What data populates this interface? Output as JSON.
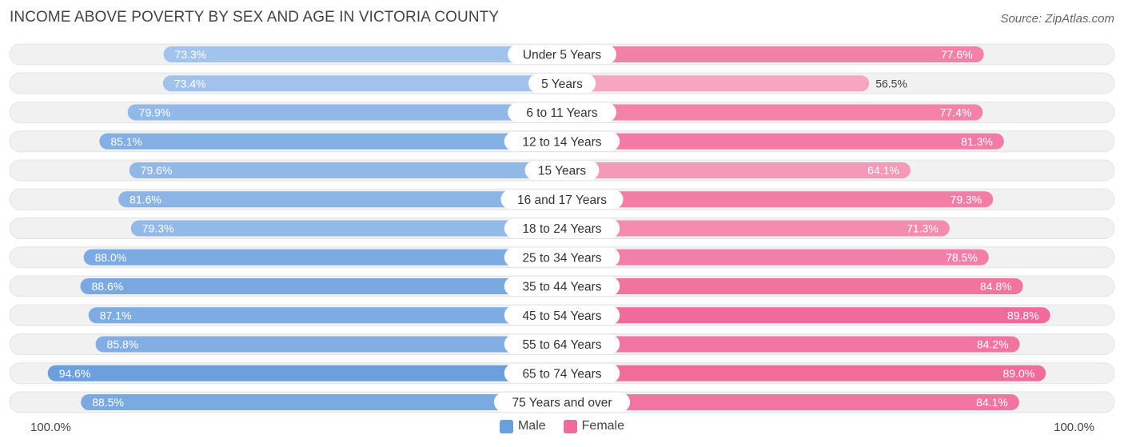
{
  "title": "INCOME ABOVE POVERTY BY SEX AND AGE IN VICTORIA COUNTY",
  "source": "Source: ZipAtlas.com",
  "axis": {
    "left_label": "100.0%",
    "right_label": "100.0%"
  },
  "legend": {
    "male": "Male",
    "female": "Female"
  },
  "colors": {
    "male_dark": "#6a9fdd",
    "male_light": "#aac8ee",
    "female_dark": "#f06b99",
    "female_light": "#f7a9c4",
    "track": "#f1f1f1"
  },
  "chart_data": {
    "type": "bar",
    "orientation": "horizontal-diverging",
    "title": "INCOME ABOVE POVERTY BY SEX AND AGE IN VICTORIA COUNTY",
    "xlim": [
      0,
      100
    ],
    "categories": [
      "Under 5 Years",
      "5 Years",
      "6 to 11 Years",
      "12 to 14 Years",
      "15 Years",
      "16 and 17 Years",
      "18 to 24 Years",
      "25 to 34 Years",
      "35 to 44 Years",
      "45 to 54 Years",
      "55 to 64 Years",
      "65 to 74 Years",
      "75 Years and over"
    ],
    "series": [
      {
        "name": "Male",
        "values": [
          73.3,
          73.4,
          79.9,
          85.1,
          79.6,
          81.6,
          79.3,
          88.0,
          88.6,
          87.1,
          85.8,
          94.6,
          88.5
        ],
        "labels": [
          "73.3%",
          "73.4%",
          "79.9%",
          "85.1%",
          "79.6%",
          "81.6%",
          "79.3%",
          "88.0%",
          "88.6%",
          "87.1%",
          "85.8%",
          "94.6%",
          "88.5%"
        ]
      },
      {
        "name": "Female",
        "values": [
          77.6,
          56.5,
          77.4,
          81.3,
          64.1,
          79.3,
          71.3,
          78.5,
          84.8,
          89.8,
          84.2,
          89.0,
          84.1
        ],
        "labels": [
          "77.6%",
          "56.5%",
          "77.4%",
          "81.3%",
          "64.1%",
          "79.3%",
          "71.3%",
          "78.5%",
          "84.8%",
          "89.8%",
          "84.2%",
          "89.0%",
          "84.1%"
        ]
      }
    ],
    "legend_position": "bottom-center"
  }
}
